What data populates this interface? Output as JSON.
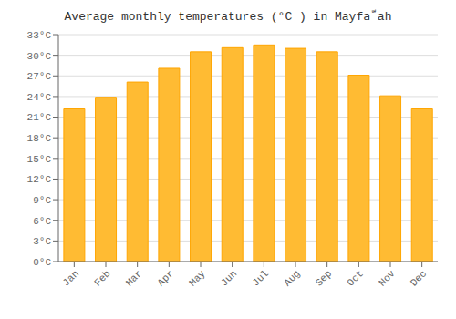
{
  "chart_data": {
    "type": "bar",
    "title": "Average monthly temperatures (°C ) in Mayfaّ ah",
    "categories": [
      "Jan",
      "Feb",
      "Mar",
      "Apr",
      "May",
      "Jun",
      "Jul",
      "Aug",
      "Sep",
      "Oct",
      "Nov",
      "Dec"
    ],
    "values": [
      22.2,
      23.9,
      26.1,
      28.1,
      30.5,
      31.1,
      31.5,
      31.0,
      30.5,
      27.1,
      24.1,
      22.2
    ],
    "color": "#FFBB33",
    "ylim": [
      0,
      33
    ],
    "yticks": [
      {
        "value": 0,
        "label": "0°C"
      },
      {
        "value": 3,
        "label": "3°C"
      },
      {
        "value": 6,
        "label": "6°C"
      },
      {
        "value": 9,
        "label": "9°C"
      },
      {
        "value": 12,
        "label": "12°C"
      },
      {
        "value": 15,
        "label": "15°C"
      },
      {
        "value": 18,
        "label": "18°C"
      },
      {
        "value": 21,
        "label": "21°C"
      },
      {
        "value": 24,
        "label": "24°C"
      },
      {
        "value": 27,
        "label": "27°C"
      },
      {
        "value": 30,
        "label": "30°C"
      },
      {
        "value": 33,
        "label": "33°C"
      }
    ],
    "grid": true
  }
}
